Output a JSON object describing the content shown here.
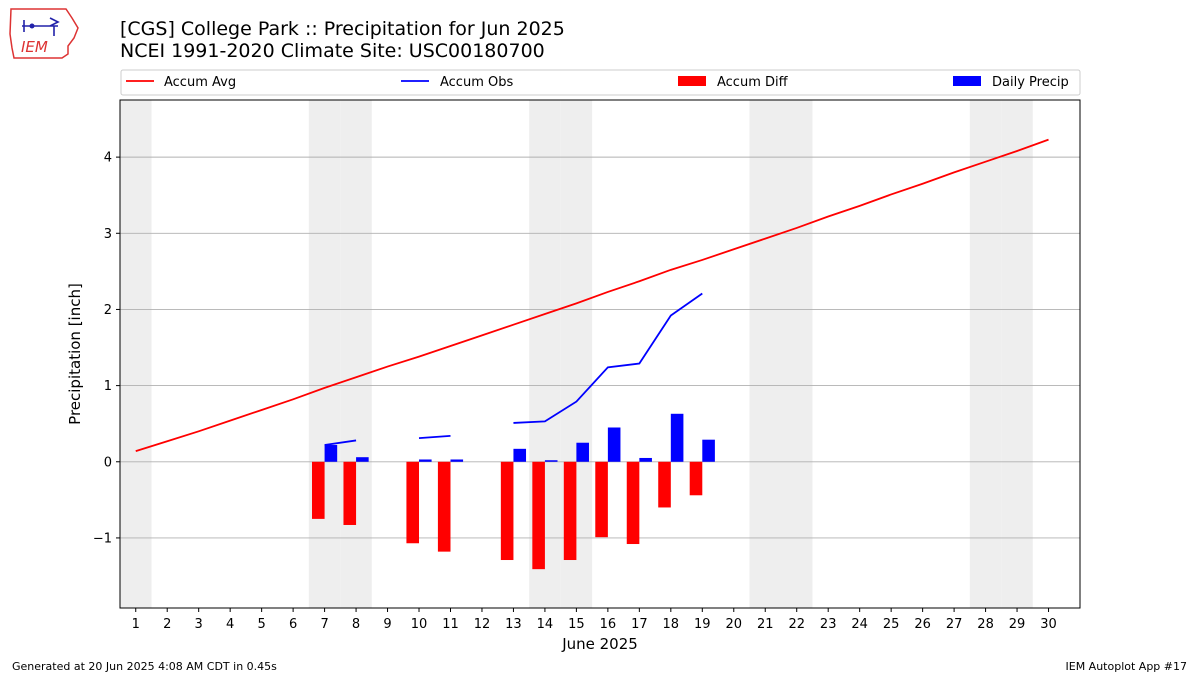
{
  "header": {
    "title_line1": "[CGS] College Park :: Precipitation for Jun 2025",
    "title_line2": "NCEI 1991-2020 Climate Site: USC00180700"
  },
  "logo": {
    "text": "IEM"
  },
  "footer": {
    "generated": "Generated at 20 Jun 2025 4:08 AM CDT in 0.45s",
    "app": "IEM Autoplot App #17"
  },
  "colors": {
    "accum_avg": "#ff0000",
    "accum_obs": "#0000ff",
    "accum_diff": "#ff0000",
    "daily_precip": "#0000ff",
    "weekend_shade": "#eeeeee",
    "grid": "#b0b0b0"
  },
  "chart_data": {
    "type": "bar",
    "xlabel": "June 2025",
    "ylabel": "Precipitation [inch]",
    "xlim": [
      0.5,
      31.0
    ],
    "ylim": [
      -1.92,
      4.75
    ],
    "yticks": [
      -1,
      0,
      1,
      2,
      3,
      4
    ],
    "ytick_labels": [
      "−1",
      "0",
      "1",
      "2",
      "3",
      "4"
    ],
    "x": [
      1,
      2,
      3,
      4,
      5,
      6,
      7,
      8,
      9,
      10,
      11,
      12,
      13,
      14,
      15,
      16,
      17,
      18,
      19,
      20,
      21,
      22,
      23,
      24,
      25,
      26,
      27,
      28,
      29,
      30
    ],
    "grid": "horizontal",
    "legend_placement": "top",
    "legend": [
      "Accum Avg",
      "Accum Obs",
      "Accum Diff",
      "Daily Precip"
    ],
    "weekend_days": [
      1,
      7,
      8,
      14,
      15,
      21,
      22,
      28,
      29
    ],
    "accum_avg": [
      0.14,
      0.27,
      0.4,
      0.54,
      0.68,
      0.82,
      0.97,
      1.11,
      1.25,
      1.38,
      1.52,
      1.66,
      1.8,
      1.94,
      2.08,
      2.23,
      2.37,
      2.52,
      2.65,
      2.79,
      2.93,
      3.07,
      3.22,
      3.36,
      3.51,
      3.65,
      3.8,
      3.94,
      4.08,
      4.23
    ],
    "accum_obs": [
      null,
      null,
      null,
      null,
      null,
      null,
      0.22,
      0.28,
      null,
      0.31,
      0.34,
      null,
      0.51,
      0.53,
      0.79,
      1.24,
      1.29,
      1.92,
      2.21,
      null,
      null,
      null,
      null,
      null,
      null,
      null,
      null,
      null,
      null,
      null
    ],
    "daily_precip": [
      null,
      null,
      null,
      null,
      null,
      null,
      0.22,
      0.06,
      null,
      0.03,
      0.03,
      null,
      0.17,
      0.02,
      0.25,
      0.45,
      0.05,
      0.63,
      0.29,
      null,
      null,
      null,
      null,
      null,
      null,
      null,
      null,
      null,
      null,
      null
    ],
    "accum_diff": [
      null,
      null,
      null,
      null,
      null,
      null,
      -0.75,
      -0.83,
      null,
      -1.07,
      -1.18,
      null,
      -1.29,
      -1.41,
      -1.29,
      -0.99,
      -1.08,
      -0.6,
      -0.44,
      null,
      null,
      null,
      null,
      null,
      null,
      null,
      null,
      null,
      null,
      null
    ]
  }
}
